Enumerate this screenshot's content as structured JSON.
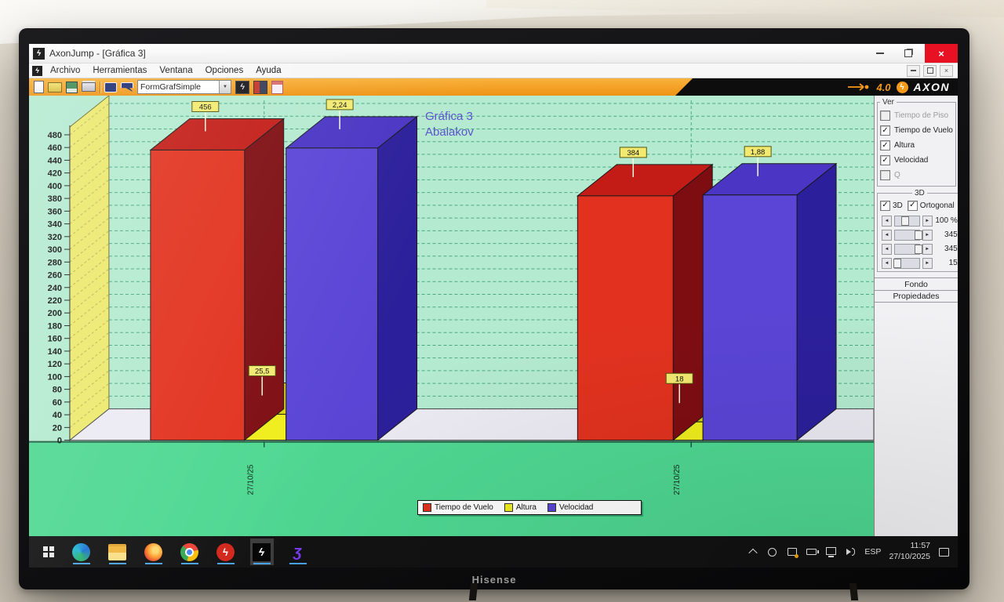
{
  "window": {
    "title": "AxonJump - [Gráfica 3]",
    "app_icon": "ϟ",
    "controls": {
      "minimize": "minimize",
      "restore": "restore",
      "close": "×"
    }
  },
  "menu": {
    "items": [
      "Archivo",
      "Herramientas",
      "Ventana",
      "Opciones",
      "Ayuda"
    ]
  },
  "toolbar": {
    "icons_left": [
      "new-document-icon",
      "open-folder-icon",
      "save-icon",
      "print-icon"
    ],
    "icons_mid": [
      "comment-icon",
      "comment-arrow-icon"
    ],
    "combo_value": "FormGrafSimple",
    "icons_right": [
      "analysis-icon",
      "report-icon",
      "calculator-icon"
    ],
    "logo": {
      "version": "4.0",
      "brand": "AXON",
      "runner_glyph": "ϟ"
    }
  },
  "panel": {
    "ver": {
      "title": "Ver",
      "items": [
        {
          "label": "Tiempo de Piso",
          "checked": false,
          "enabled": false
        },
        {
          "label": "Tiempo de Vuelo",
          "checked": true,
          "enabled": true
        },
        {
          "label": "Altura",
          "checked": true,
          "enabled": true
        },
        {
          "label": "Velocidad",
          "checked": true,
          "enabled": true
        },
        {
          "label": "Q",
          "checked": false,
          "enabled": false
        }
      ]
    },
    "d3": {
      "title": "3D",
      "checkboxes": [
        {
          "label": "3D",
          "checked": true
        },
        {
          "label": "Ortogonal",
          "checked": true
        }
      ],
      "sliders": [
        {
          "value": "100 %",
          "thumb": 0.38
        },
        {
          "value": "345",
          "thumb": 0.93
        },
        {
          "value": "345",
          "thumb": 0.93
        },
        {
          "value": "15",
          "thumb": 0.08
        }
      ],
      "buttons": [
        "Fondo",
        "Propiedades"
      ]
    }
  },
  "chart_data": {
    "type": "bar",
    "title": "Gráfica 3",
    "subtitle": "Abalakov",
    "categories": [
      "27/10/25",
      "27/10/25"
    ],
    "series": [
      {
        "name": "Tiempo de Vuelo",
        "values": [
          456,
          384
        ],
        "labels": [
          "456",
          "384"
        ],
        "color": "#e2321f",
        "side_color": "#7e0d12",
        "top_color": "#c31c16",
        "render_scale": 1
      },
      {
        "name": "Altura",
        "values": [
          25.5,
          18
        ],
        "labels": [
          "25,5",
          "18"
        ],
        "color": "#f0ee1c",
        "side_color": "#a8a511",
        "top_color": "#d6d312",
        "render_scale": 1.6
      },
      {
        "name": "Velocidad",
        "values": [
          2.24,
          1.88
        ],
        "labels": [
          "2,24",
          "1,88"
        ],
        "color": "#5a45d6",
        "side_color": "#2c1f9b",
        "top_color": "#4a35c4",
        "render_scale": 205
      }
    ],
    "ylim": [
      0,
      480
    ],
    "ytick_step": 20,
    "grid": "dashed",
    "legend_position": "bottom",
    "colors": {
      "plot_bg": "#b4ead0",
      "grid_line": "#4aa983",
      "wall": "#ece96e",
      "floor_top": "#eceaf2",
      "floor_front": "#4fd892",
      "title_text": "#5b51cf",
      "value_tag_bg": "#f2ea70"
    }
  },
  "taskbar": {
    "apps": [
      {
        "name": "edge",
        "glyph": ""
      },
      {
        "name": "explorer",
        "glyph": ""
      },
      {
        "name": "firefox",
        "glyph": ""
      },
      {
        "name": "chrome",
        "glyph": ""
      },
      {
        "name": "video",
        "glyph": "ϟ"
      },
      {
        "name": "axonjump",
        "glyph": "ϟ",
        "active": true
      },
      {
        "name": "gecko",
        "glyph": "ʒ"
      }
    ],
    "tray_icons": [
      "chevron-up",
      "clock",
      "update",
      "battery",
      "display",
      "volume"
    ],
    "language": "ESP",
    "time": "11:57",
    "date": "27/10/2025"
  },
  "tv": {
    "brand": "Hisense"
  }
}
